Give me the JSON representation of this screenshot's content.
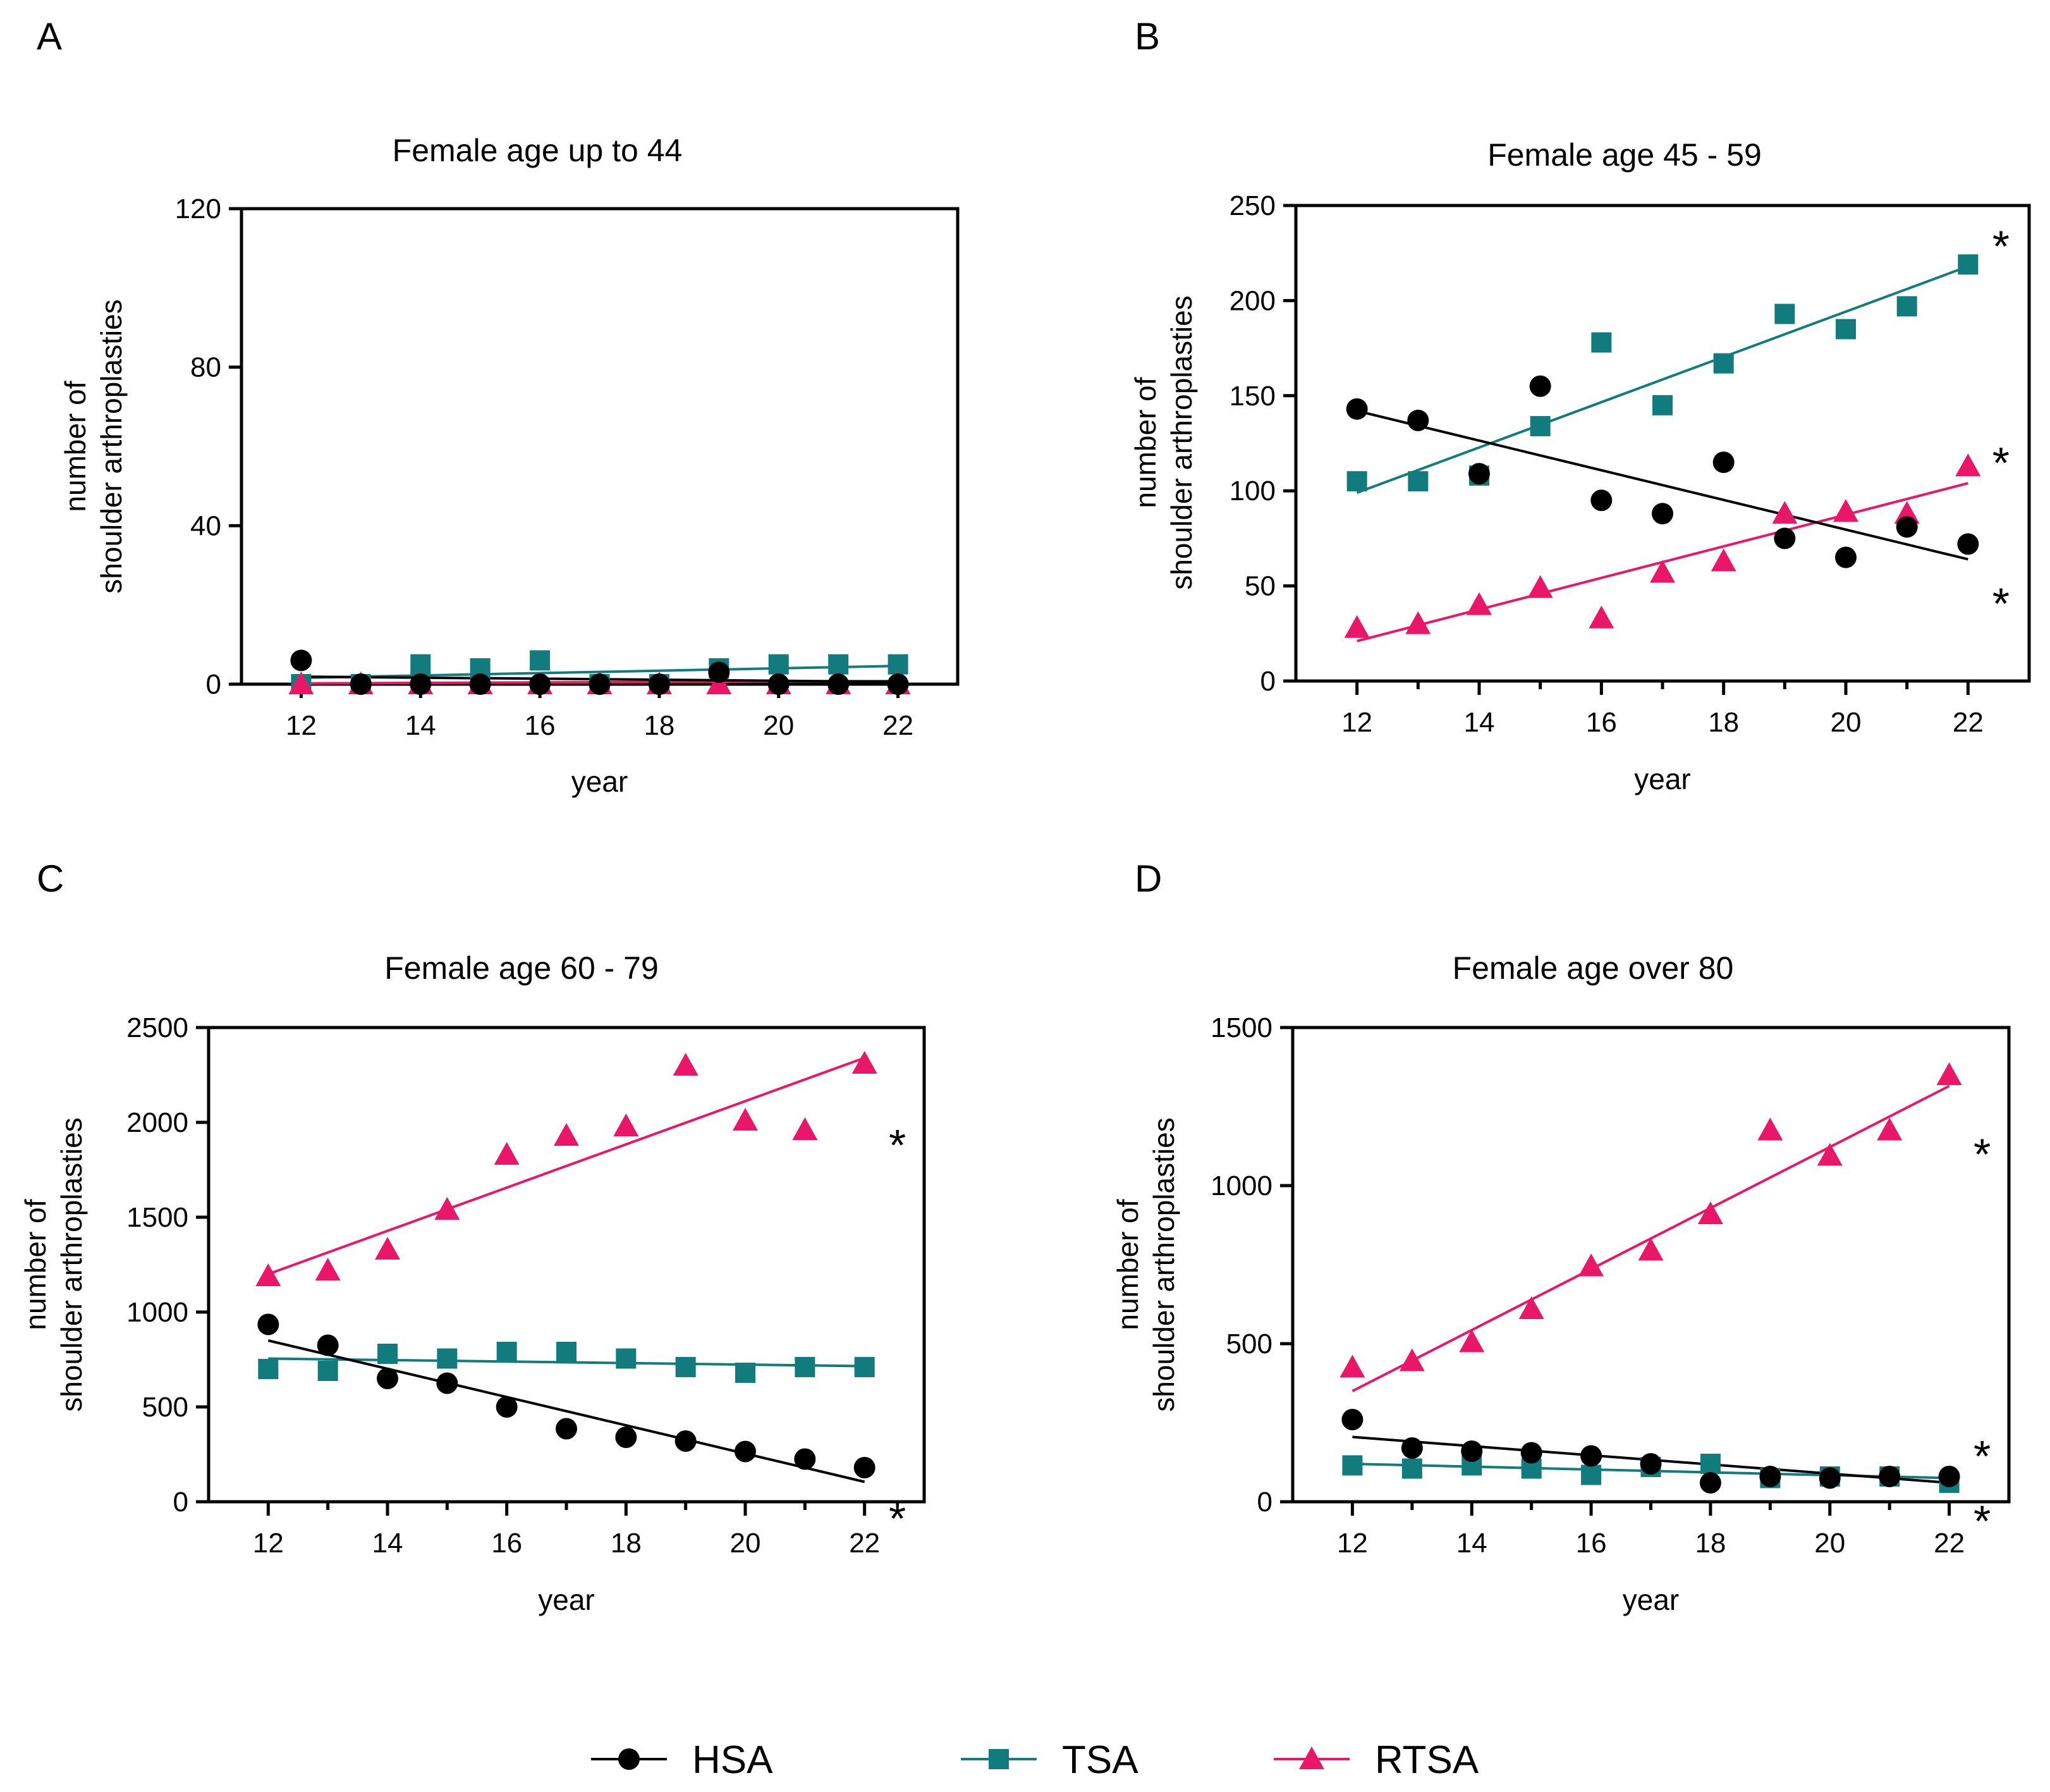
{
  "colors": {
    "HSA": "#000000",
    "TSA": "#127b7d",
    "RTSA": "#ea1667"
  },
  "legend": [
    {
      "key": "HSA",
      "label": "HSA",
      "marker": "circle"
    },
    {
      "key": "TSA",
      "label": "TSA",
      "marker": "square"
    },
    {
      "key": "RTSA",
      "label": "RTSA",
      "marker": "triangle"
    }
  ],
  "chart_data": [
    {
      "panel": "A",
      "type": "scatter",
      "title": "Female age up to 44",
      "xlabel": "year",
      "ylabel": [
        "number of",
        "shoulder arthroplasties"
      ],
      "xlim": [
        11,
        23
      ],
      "ylim": [
        0,
        120
      ],
      "xticks": [
        12,
        14,
        16,
        18,
        20,
        22
      ],
      "yticks": [
        0,
        40,
        80,
        120
      ],
      "x": [
        12,
        13,
        14,
        15,
        16,
        17,
        18,
        19,
        20,
        21,
        22
      ],
      "series": [
        {
          "name": "HSA",
          "values": [
            6,
            0,
            0,
            0,
            0,
            0,
            0,
            3,
            0,
            0,
            0
          ],
          "trend": [
            1.9,
            0.6
          ]
        },
        {
          "name": "TSA",
          "values": [
            0,
            0,
            5,
            4,
            6,
            0,
            0,
            4,
            5,
            5,
            5
          ],
          "trend": [
            1.6,
            4.6
          ]
        },
        {
          "name": "RTSA",
          "values": [
            0,
            0,
            0,
            0,
            0,
            0,
            0,
            0,
            0,
            0,
            0
          ],
          "trend": [
            0.2,
            0.8
          ]
        }
      ],
      "significant": []
    },
    {
      "panel": "B",
      "type": "scatter",
      "title": "Female age 45 - 59",
      "xlabel": "year",
      "ylabel": [
        "number of",
        "shoulder arthroplasties"
      ],
      "xlim": [
        11,
        23
      ],
      "ylim": [
        0,
        250
      ],
      "xticks": [
        12,
        14,
        16,
        18,
        20,
        22
      ],
      "yticks": [
        0,
        50,
        100,
        150,
        200,
        250
      ],
      "x": [
        12,
        13,
        14,
        15,
        16,
        17,
        18,
        19,
        20,
        21,
        22
      ],
      "series": [
        {
          "name": "HSA",
          "values": [
            143,
            137,
            109,
            155,
            95,
            88,
            115,
            75,
            65,
            81,
            72
          ],
          "trend": [
            142,
            64
          ]
        },
        {
          "name": "TSA",
          "values": [
            105,
            105,
            108,
            134,
            178,
            145,
            167,
            193,
            185,
            197,
            219
          ],
          "trend": [
            99,
            218
          ]
        },
        {
          "name": "RTSA",
          "values": [
            28,
            30,
            40,
            49,
            33,
            57,
            63,
            88,
            89,
            88,
            113
          ],
          "trend": [
            21,
            104
          ]
        }
      ],
      "significant": [
        "TSA",
        "RTSA",
        "HSA"
      ]
    },
    {
      "panel": "C",
      "type": "scatter",
      "title": "Female age 60 - 79",
      "xlabel": "year",
      "ylabel": [
        "number of",
        "shoulder arthroplasties"
      ],
      "xlim": [
        11,
        23
      ],
      "ylim": [
        0,
        2500
      ],
      "xticks": [
        12,
        14,
        16,
        18,
        20,
        22
      ],
      "yticks": [
        0,
        500,
        1000,
        1500,
        2000,
        2500
      ],
      "x": [
        12,
        13,
        14,
        15,
        16,
        17,
        18,
        19,
        20,
        21,
        22
      ],
      "series": [
        {
          "name": "HSA",
          "values": [
            935,
            825,
            650,
            625,
            500,
            385,
            340,
            320,
            265,
            225,
            180
          ],
          "trend": [
            850,
            105
          ]
        },
        {
          "name": "TSA",
          "values": [
            700,
            690,
            780,
            755,
            790,
            790,
            755,
            710,
            680,
            710,
            710
          ],
          "trend": [
            755,
            715
          ]
        },
        {
          "name": "RTSA",
          "values": [
            1190,
            1220,
            1330,
            1540,
            1830,
            1930,
            1980,
            2300,
            2010,
            1960,
            2310
          ],
          "trend": [
            1200,
            2340
          ]
        }
      ],
      "significant": [
        "RTSA",
        "HSA"
      ]
    },
    {
      "panel": "D",
      "type": "scatter",
      "title": "Female age over 80",
      "xlabel": "year",
      "ylabel": [
        "number of",
        "shoulder arthroplasties"
      ],
      "xlim": [
        11,
        23
      ],
      "ylim": [
        0,
        1500
      ],
      "xticks": [
        12,
        14,
        16,
        18,
        20,
        22
      ],
      "yticks": [
        0,
        500,
        1000,
        1500
      ],
      "x": [
        12,
        13,
        14,
        15,
        16,
        17,
        18,
        19,
        20,
        21,
        22
      ],
      "series": [
        {
          "name": "HSA",
          "values": [
            260,
            170,
            160,
            155,
            145,
            120,
            60,
            80,
            75,
            80,
            80
          ],
          "trend": [
            205,
            60
          ]
        },
        {
          "name": "TSA",
          "values": [
            115,
            105,
            115,
            105,
            85,
            110,
            120,
            75,
            80,
            80,
            60
          ],
          "trend": [
            120,
            75
          ]
        },
        {
          "name": "RTSA",
          "values": [
            425,
            445,
            505,
            610,
            745,
            795,
            910,
            1175,
            1095,
            1175,
            1350
          ],
          "trend": [
            350,
            1315
          ]
        }
      ],
      "significant": [
        "RTSA",
        "HSA",
        "TSA"
      ]
    }
  ]
}
